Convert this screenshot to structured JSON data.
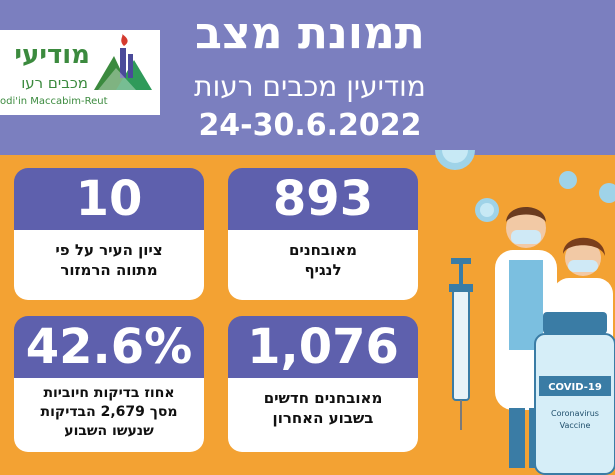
{
  "header": {
    "title": "תמונת מצב",
    "subtitle": "מודיעין מכבים רעות",
    "dates": "24-30.6.2022"
  },
  "logo": {
    "name": "מודיעי",
    "sub": "מכבים רעו",
    "en": "odi'in Maccabim-Reut"
  },
  "stats": {
    "tested": {
      "value": "893",
      "label_line1": "מאובחנים",
      "label_line2": "לנגיף"
    },
    "score": {
      "value": "10",
      "label_line1": "ציון העיר על פי",
      "label_line2": "מתווה הרמזור"
    },
    "new_cases": {
      "value": "1,076",
      "label_line1": "מאובחנים חדשים",
      "label_line2": "בשבוע האחרון"
    },
    "positive": {
      "value": "42.6%",
      "label_line1": "אחוז בדיקות חיוביות",
      "label_line2": "מסך 2,679 הבדיקות",
      "label_line3": "שנעשו השבוע"
    }
  },
  "illustration": {
    "vial_label": "COVID-19",
    "vial_text1": "Coronavirus",
    "vial_text2": "Vaccine"
  },
  "colors": {
    "header_bg": "#7b7fbf",
    "page_bg": "#f3a233",
    "card_number_bg": "#5e60ad",
    "logo_green": "#3b8a3e"
  }
}
